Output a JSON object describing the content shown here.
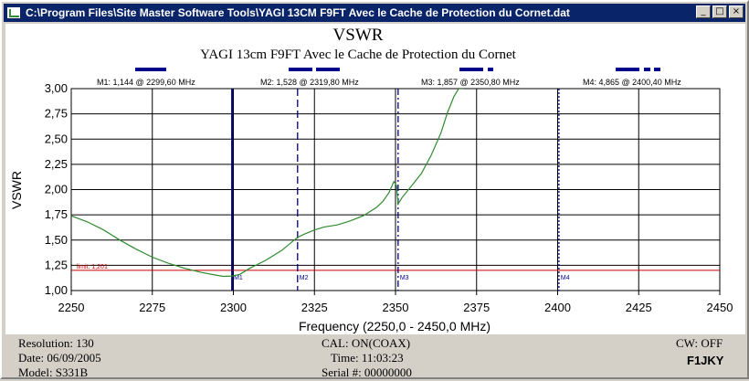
{
  "window": {
    "title": "C:\\Program Files\\Site Master Software Tools\\YAGI 13CM F9FT Avec le Cache de Protection du Cornet.dat",
    "min_glyph": "_",
    "max_glyph": "□",
    "close_glyph": "×"
  },
  "footer": {
    "resolution": "Resolution:  130",
    "date": "Date: 06/09/2005",
    "model": "Model:  S331B",
    "cal": "CAL:  ON(COAX)",
    "time": "Time:  11:03:23",
    "serial": "Serial #:  00000000",
    "cw": "CW:  OFF",
    "callsign": "F1JKY"
  },
  "colors": {
    "trace": "#2e8b2e",
    "marker": "#00008b",
    "limit": "#cc0000",
    "titlebar": "#0a246a"
  },
  "chart_data": {
    "type": "line",
    "title": "VSWR",
    "subtitle": "YAGI 13cm F9FT Avec le Cache de Protection du Cornet",
    "xlabel": "Frequency (2250,0 - 2450,0 MHz)",
    "ylabel": "VSWR",
    "xlim": [
      2250,
      2450
    ],
    "ylim": [
      1.0,
      3.0
    ],
    "x_ticks": [
      "2250",
      "2275",
      "2300",
      "2325",
      "2350",
      "2375",
      "2400",
      "2425",
      "2450"
    ],
    "y_ticks": [
      "1,00",
      "1,25",
      "1,50",
      "1,75",
      "2,00",
      "2,25",
      "2,50",
      "2,75",
      "3,00"
    ],
    "grid": true,
    "limit_line": {
      "value": 1.2,
      "label": "limit: 1,201"
    },
    "markers": [
      {
        "name": "M1",
        "freq": 2299.6,
        "vswr": 1.144,
        "label": "M1: 1,144  @ 2299,60 MHz",
        "style": "solid"
      },
      {
        "name": "M2",
        "freq": 2319.8,
        "vswr": 1.528,
        "label": "M2: 1,528  @ 2319,80 MHz",
        "style": "dashed"
      },
      {
        "name": "M3",
        "freq": 2350.8,
        "vswr": 1.857,
        "label": "M3: 1,857  @ 2350,80 MHz",
        "style": "dashdot"
      },
      {
        "name": "M4",
        "freq": 2400.4,
        "vswr": 4.865,
        "label": "M4: 4,865  @ 2400,40 MHz",
        "style": "dotted"
      }
    ],
    "series": [
      {
        "x": [
          2250,
          2255,
          2260,
          2265,
          2270,
          2275,
          2280,
          2285,
          2290,
          2295,
          2297,
          2299.6,
          2302,
          2305,
          2310,
          2315,
          2319.8,
          2322,
          2325,
          2328,
          2332,
          2336,
          2340,
          2344,
          2346,
          2348,
          2349.5,
          2350.3,
          2350.8,
          2352,
          2355,
          2358,
          2361,
          2364,
          2366,
          2368,
          2369.5,
          2371
        ],
        "y": [
          1.74,
          1.68,
          1.6,
          1.5,
          1.41,
          1.33,
          1.27,
          1.22,
          1.18,
          1.15,
          1.14,
          1.144,
          1.16,
          1.22,
          1.3,
          1.4,
          1.528,
          1.56,
          1.6,
          1.63,
          1.65,
          1.69,
          1.74,
          1.82,
          1.88,
          1.97,
          2.08,
          2.04,
          1.857,
          1.92,
          2.04,
          2.16,
          2.34,
          2.56,
          2.76,
          2.92,
          3.0,
          3.0
        ]
      }
    ]
  }
}
